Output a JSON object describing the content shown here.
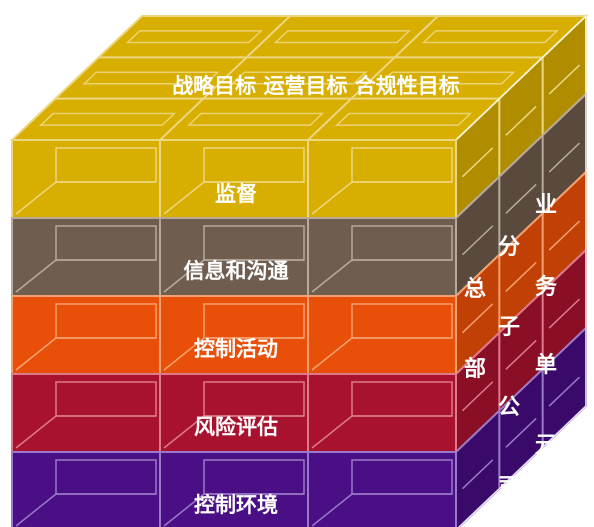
{
  "top_label": "战略目标   运营目标   合规性目标",
  "layers": [
    {
      "label": "监督",
      "front": "#d8ae00",
      "side": "#b08d00",
      "line": "#ecd780"
    },
    {
      "label": "信息和沟通",
      "front": "#6f5e50",
      "side": "#5a4a3e",
      "line": "#b7a99b"
    },
    {
      "label": "控制活动",
      "front": "#e8500a",
      "side": "#c04005",
      "line": "#f5a070"
    },
    {
      "label": "风险评估",
      "front": "#a8122e",
      "side": "#8a0e26",
      "line": "#dd7a8c"
    },
    {
      "label": "控制环境",
      "front": "#4a0f85",
      "side": "#3a0a6a",
      "line": "#9a7ac8"
    }
  ],
  "top_color": "#d8ae00",
  "top_line": "#ecd780",
  "side_labels": {
    "col1": [
      "总",
      "部"
    ],
    "col2": [
      "分",
      "子",
      "公",
      "司"
    ],
    "col3": [
      "业",
      "务",
      "单",
      "元"
    ]
  }
}
